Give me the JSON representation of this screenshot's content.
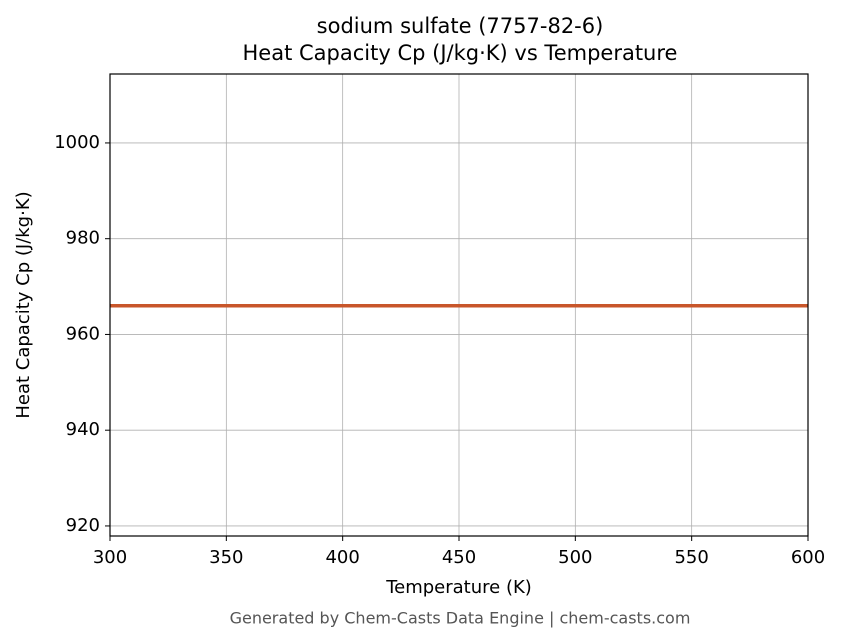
{
  "chart_data": {
    "type": "line",
    "title": "sodium sulfate (7757-82-6)",
    "subtitle": "Heat Capacity Cp (J/kg·K) vs Temperature",
    "x_label": "Temperature (K)",
    "y_label": "Heat Capacity Cp (J/kg·K)",
    "footer": "Generated by Chem-Casts Data Engine | chem-casts.com",
    "x": [
      300,
      600
    ],
    "series": [
      {
        "name": "Cp",
        "color": "#c8562a",
        "values": [
          966,
          966
        ]
      }
    ],
    "xlim": [
      300,
      600
    ],
    "xticks": [
      300,
      350,
      400,
      450,
      500,
      550,
      600
    ],
    "ylim": [
      917.9,
      1014.4
    ],
    "yticks": [
      920,
      940,
      960,
      980,
      1000
    ],
    "grid": true
  }
}
